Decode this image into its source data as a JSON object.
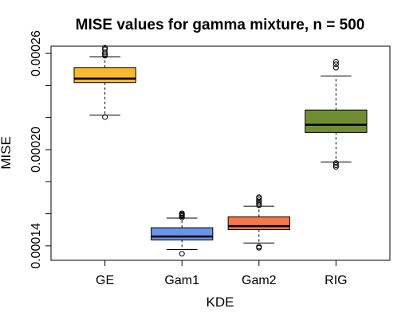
{
  "chart_data": {
    "type": "boxplot",
    "title": "MISE values for gamma mixture, n = 500",
    "xlabel": "KDE",
    "ylabel": "MISE",
    "categories": [
      "GE",
      "Gam1",
      "Gam2",
      "RIG"
    ],
    "ylim": [
      0.000131,
      0.0002645
    ],
    "yticks": [
      0.00014,
      0.00016,
      0.00018,
      0.0002,
      0.00022,
      0.00024,
      0.00026
    ],
    "ytick_labels": [
      "0.00014",
      "",
      "",
      "0.00020",
      "",
      "",
      "0.00026"
    ],
    "grid": false,
    "boxes": [
      {
        "name": "GE",
        "color": "#F6B92B",
        "whisker_low": 0.0002215,
        "q1": 0.0002418,
        "median": 0.0002443,
        "q3": 0.0002512,
        "whisker_high": 0.0002578,
        "outliers": [
          0.0002203,
          0.0002586,
          0.0002596,
          0.0002605,
          0.0002625,
          0.0002635
        ]
      },
      {
        "name": "Gam1",
        "color": "#6A95E6",
        "whisker_low": 0.0001377,
        "q1": 0.0001437,
        "median": 0.0001458,
        "q3": 0.0001513,
        "whisker_high": 0.0001573,
        "outliers": [
          0.0001351,
          0.0001577,
          0.0001585,
          0.0001591,
          0.0001597,
          0.0001603
        ]
      },
      {
        "name": "Gam2",
        "color": "#F5774A",
        "whisker_low": 0.0001418,
        "q1": 0.0001501,
        "median": 0.0001523,
        "q3": 0.0001581,
        "whisker_high": 0.0001647,
        "outliers": [
          0.0001388,
          0.0001395,
          0.0001653,
          0.0001662,
          0.0001672,
          0.0001684,
          0.0001697,
          0.0001703
        ]
      },
      {
        "name": "RIG",
        "color": "#6F8E34",
        "whisker_low": 0.0001922,
        "q1": 0.0002107,
        "median": 0.0002155,
        "q3": 0.0002247,
        "whisker_high": 0.0002459,
        "outliers": [
          0.0001893,
          0.0001903,
          0.0001917,
          0.0002511,
          0.0002532,
          0.0002548
        ]
      }
    ]
  }
}
